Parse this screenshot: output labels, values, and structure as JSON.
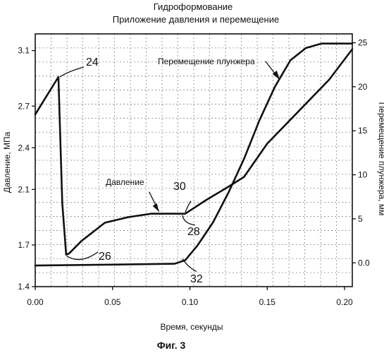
{
  "chart_data": {
    "type": "line",
    "title": "Гидроформование",
    "subtitle": "Приложение давления и перемещение",
    "caption": "Фиг. 3",
    "xlabel": "Время, секунды",
    "ylabel_left": "Давление, МПа",
    "ylabel_right": "Перемещение плунжера, мм",
    "xlim": [
      0.0,
      0.205
    ],
    "ylim_left": [
      1.4,
      3.22
    ],
    "ylim_right": [
      -2.7,
      26
    ],
    "grid": true,
    "x_ticks": [
      "0.00",
      "0.05",
      "0.10",
      "0.15",
      "0.20"
    ],
    "y_left_ticks": [
      "1.4",
      "1.7",
      "2.1",
      "2.4",
      "2.7",
      "3.1"
    ],
    "y_right_ticks": [
      "0.0",
      "5",
      "10",
      "15",
      "20",
      "25"
    ],
    "series": [
      {
        "name": "Давление",
        "axis": "left",
        "x": [
          0.0,
          0.015,
          0.0175,
          0.02,
          0.022,
          0.03,
          0.045,
          0.06,
          0.075,
          0.085,
          0.097,
          0.11,
          0.125,
          0.135,
          0.15,
          0.17,
          0.19,
          0.205
        ],
        "y": [
          2.64,
          2.91,
          2.0,
          1.63,
          1.64,
          1.73,
          1.86,
          1.9,
          1.925,
          1.925,
          1.925,
          2.02,
          2.12,
          2.19,
          2.43,
          2.66,
          2.89,
          3.11
        ]
      },
      {
        "name": "Перемещение плунжера",
        "axis": "right",
        "x": [
          0.0,
          0.05,
          0.09,
          0.097,
          0.105,
          0.115,
          0.125,
          0.135,
          0.145,
          0.155,
          0.165,
          0.175,
          0.185,
          0.195,
          0.205
        ],
        "y": [
          -0.3,
          -0.2,
          -0.1,
          0.3,
          2.0,
          4.6,
          8.0,
          11.8,
          16.2,
          20.0,
          23.0,
          24.4,
          24.9,
          24.9,
          24.9
        ]
      }
    ],
    "annotations": [
      {
        "label": "24",
        "x": 0.015,
        "y": 2.91,
        "axis": "left"
      },
      {
        "label": "26",
        "x": 0.0205,
        "y": 1.63,
        "axis": "left"
      },
      {
        "label": "28",
        "x": 0.097,
        "y": 1.925,
        "axis": "left"
      },
      {
        "label": "30",
        "x": 0.097,
        "y": 1.925,
        "axis": "left"
      },
      {
        "label": "32",
        "x": 0.097,
        "y": 0.3,
        "axis": "right"
      }
    ],
    "callouts": [
      {
        "text": "Давление",
        "target_series": 0,
        "x": 0.08,
        "y": 1.92
      },
      {
        "text": "Перемещение плунжера",
        "target_series": 1,
        "x": 0.158,
        "y": 20.8
      }
    ]
  }
}
